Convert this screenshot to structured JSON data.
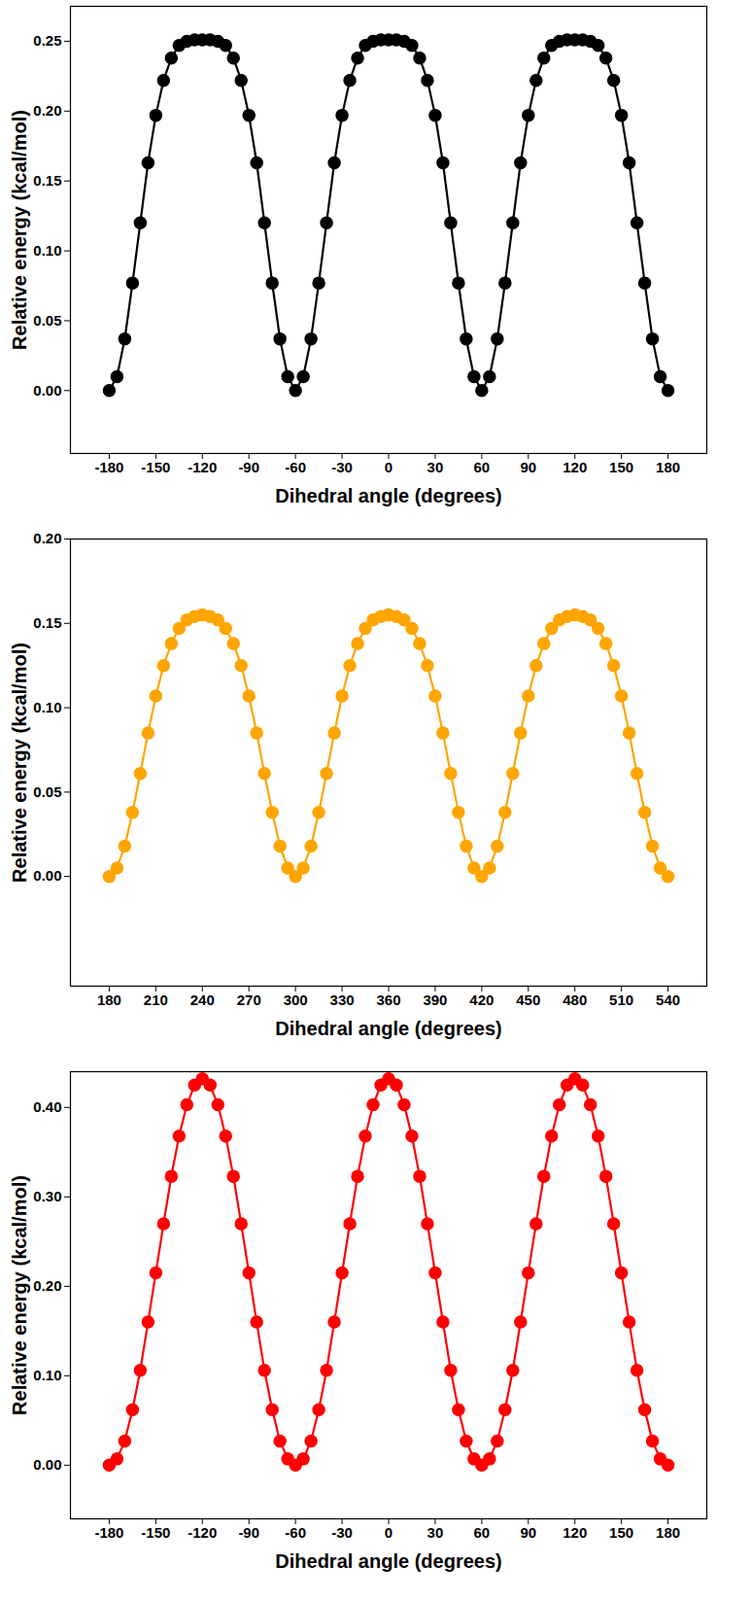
{
  "chart_data": [
    {
      "type": "line",
      "x_label": "Dihedral angle (degrees)",
      "y_label": "Relative energy (kcal/mol)",
      "xlim": [
        -205,
        205
      ],
      "ylim": [
        -0.045,
        0.275
      ],
      "xticks": [
        -180,
        -150,
        -120,
        -90,
        -60,
        -30,
        0,
        30,
        60,
        90,
        120,
        150,
        180
      ],
      "yticks": [
        {
          "value": 0,
          "label": "0.00"
        },
        {
          "value": 0.05,
          "label": "0.05"
        },
        {
          "value": 0.1,
          "label": "0.10"
        },
        {
          "value": 0.15,
          "label": "0.15"
        },
        {
          "value": 0.2,
          "label": "0.20"
        },
        {
          "value": 0.25,
          "label": "0.25"
        }
      ],
      "x": [
        -180,
        -175,
        -170,
        -165,
        -160,
        -155,
        -150,
        -145,
        -140,
        -135,
        -130,
        -125,
        -120,
        -115,
        -110,
        -105,
        -100,
        -95,
        -90,
        -85,
        -80,
        -75,
        -70,
        -65,
        -60,
        -55,
        -50,
        -45,
        -40,
        -35,
        -30,
        -25,
        -20,
        -15,
        -10,
        -5,
        0,
        5,
        10,
        15,
        20,
        25,
        30,
        35,
        40,
        45,
        50,
        55,
        60,
        65,
        70,
        75,
        80,
        85,
        90,
        95,
        100,
        105,
        110,
        115,
        120,
        125,
        130,
        135,
        140,
        145,
        150,
        155,
        160,
        165,
        170,
        175,
        180
      ],
      "series": [
        {
          "color": "#000000",
          "marker": "circle",
          "values": [
            0,
            0.01,
            0.037,
            0.077,
            0.12,
            0.163,
            0.197,
            0.222,
            0.238,
            0.247,
            0.25,
            0.251,
            0.251,
            0.251,
            0.25,
            0.247,
            0.238,
            0.222,
            0.197,
            0.163,
            0.12,
            0.077,
            0.037,
            0.01,
            0,
            0.01,
            0.037,
            0.077,
            0.12,
            0.163,
            0.197,
            0.222,
            0.238,
            0.247,
            0.25,
            0.251,
            0.251,
            0.251,
            0.25,
            0.247,
            0.238,
            0.222,
            0.197,
            0.163,
            0.12,
            0.077,
            0.037,
            0.01,
            0,
            0.01,
            0.037,
            0.077,
            0.12,
            0.163,
            0.197,
            0.222,
            0.238,
            0.247,
            0.25,
            0.251,
            0.251,
            0.251,
            0.25,
            0.247,
            0.238,
            0.222,
            0.197,
            0.163,
            0.12,
            0.077,
            0.037,
            0.01,
            0
          ]
        }
      ]
    },
    {
      "type": "line",
      "x_label": "Dihedral angle (degrees)",
      "y_label": "Relative energy (kcal/mol)",
      "xlim": [
        155,
        565
      ],
      "ylim": [
        -0.065,
        0.2
      ],
      "xticks": [
        180,
        210,
        240,
        270,
        300,
        330,
        360,
        390,
        420,
        450,
        480,
        510,
        540
      ],
      "yticks": [
        {
          "value": 0,
          "label": "0.00"
        },
        {
          "value": 0.05,
          "label": "0.05"
        },
        {
          "value": 0.1,
          "label": "0.10"
        },
        {
          "value": 0.15,
          "label": "0.15"
        },
        {
          "value": 0.2,
          "label": "0.20"
        }
      ],
      "x": [
        180,
        185,
        190,
        195,
        200,
        205,
        210,
        215,
        220,
        225,
        230,
        235,
        240,
        245,
        250,
        255,
        260,
        265,
        270,
        275,
        280,
        285,
        290,
        295,
        300,
        305,
        310,
        315,
        320,
        325,
        330,
        335,
        340,
        345,
        350,
        355,
        360,
        365,
        370,
        375,
        380,
        385,
        390,
        395,
        400,
        405,
        410,
        415,
        420,
        425,
        430,
        435,
        440,
        445,
        450,
        455,
        460,
        465,
        470,
        475,
        480,
        485,
        490,
        495,
        500,
        505,
        510,
        515,
        520,
        525,
        530,
        535,
        540
      ],
      "series": [
        {
          "color": "#ffa500",
          "marker": "circle",
          "values": [
            0,
            0.005,
            0.018,
            0.038,
            0.061,
            0.085,
            0.107,
            0.125,
            0.138,
            0.147,
            0.152,
            0.154,
            0.155,
            0.154,
            0.152,
            0.147,
            0.138,
            0.125,
            0.107,
            0.085,
            0.061,
            0.038,
            0.018,
            0.005,
            0,
            0.005,
            0.018,
            0.038,
            0.061,
            0.085,
            0.107,
            0.125,
            0.138,
            0.147,
            0.152,
            0.154,
            0.155,
            0.154,
            0.152,
            0.147,
            0.138,
            0.125,
            0.107,
            0.085,
            0.061,
            0.038,
            0.018,
            0.005,
            0,
            0.005,
            0.018,
            0.038,
            0.061,
            0.085,
            0.107,
            0.125,
            0.138,
            0.147,
            0.152,
            0.154,
            0.155,
            0.154,
            0.152,
            0.147,
            0.138,
            0.125,
            0.107,
            0.085,
            0.061,
            0.038,
            0.018,
            0.005,
            0
          ]
        }
      ]
    },
    {
      "type": "line",
      "x_label": "Dihedral angle (degrees)",
      "y_label": "Relative energy (kcal/mol)",
      "xlim": [
        -205,
        205
      ],
      "ylim": [
        -0.06,
        0.44
      ],
      "xticks": [
        -180,
        -150,
        -120,
        -90,
        -60,
        -30,
        0,
        30,
        60,
        90,
        120,
        150,
        180
      ],
      "yticks": [
        {
          "value": 0,
          "label": "0.00"
        },
        {
          "value": 0.1,
          "label": "0.10"
        },
        {
          "value": 0.2,
          "label": "0.20"
        },
        {
          "value": 0.3,
          "label": "0.30"
        },
        {
          "value": 0.4,
          "label": "0.40"
        }
      ],
      "x": [
        -180,
        -175,
        -170,
        -165,
        -160,
        -155,
        -150,
        -145,
        -140,
        -135,
        -130,
        -125,
        -120,
        -115,
        -110,
        -105,
        -100,
        -95,
        -90,
        -85,
        -80,
        -75,
        -70,
        -65,
        -60,
        -55,
        -50,
        -45,
        -40,
        -35,
        -30,
        -25,
        -20,
        -15,
        -10,
        -5,
        0,
        5,
        10,
        15,
        20,
        25,
        30,
        35,
        40,
        45,
        50,
        55,
        60,
        65,
        70,
        75,
        80,
        85,
        90,
        95,
        100,
        105,
        110,
        115,
        120,
        125,
        130,
        135,
        140,
        145,
        150,
        155,
        160,
        165,
        170,
        175,
        180
      ],
      "series": [
        {
          "color": "#ff0000",
          "marker": "circle",
          "values": [
            0,
            0.007,
            0.027,
            0.062,
            0.106,
            0.16,
            0.215,
            0.27,
            0.323,
            0.368,
            0.403,
            0.425,
            0.432,
            0.425,
            0.403,
            0.368,
            0.323,
            0.27,
            0.215,
            0.16,
            0.106,
            0.062,
            0.027,
            0.007,
            0,
            0.007,
            0.027,
            0.062,
            0.106,
            0.16,
            0.215,
            0.27,
            0.323,
            0.368,
            0.403,
            0.425,
            0.432,
            0.425,
            0.403,
            0.368,
            0.323,
            0.27,
            0.215,
            0.16,
            0.106,
            0.062,
            0.027,
            0.007,
            0,
            0.007,
            0.027,
            0.062,
            0.106,
            0.16,
            0.215,
            0.27,
            0.323,
            0.368,
            0.403,
            0.425,
            0.432,
            0.425,
            0.403,
            0.368,
            0.323,
            0.27,
            0.215,
            0.16,
            0.106,
            0.062,
            0.027,
            0.007,
            0
          ]
        }
      ]
    }
  ]
}
